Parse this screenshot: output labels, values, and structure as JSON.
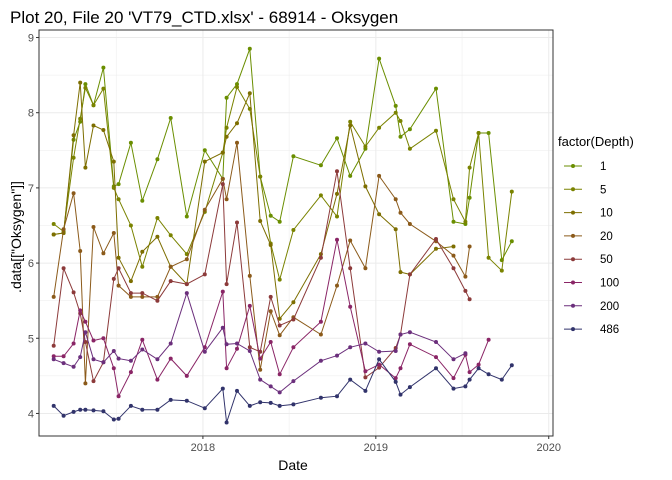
{
  "chart_data": {
    "type": "line",
    "title": "Plot 20, File 20 'VT79_CTD.xlsx' - 68914  -  Oksygen",
    "xlabel": "Date",
    "ylabel": ".data[[\"Oksygen\"]]",
    "xlim": [
      "2017-01-20",
      "2020-01-10"
    ],
    "ylim": [
      3.7,
      9.1
    ],
    "x_ticks": [
      {
        "value": "2018-01-01",
        "label": "2018"
      },
      {
        "value": "2019-01-01",
        "label": "2019"
      },
      {
        "value": "2020-01-01",
        "label": "2020"
      }
    ],
    "y_ticks": [
      4,
      5,
      6,
      7,
      8,
      9
    ],
    "grid": true,
    "legend": {
      "title": "factor(Depth)",
      "position": "right"
    },
    "x": [
      "2017-02-20",
      "2017-03-13",
      "2017-04-03",
      "2017-04-17",
      "2017-04-28",
      "2017-05-15",
      "2017-06-05",
      "2017-06-27",
      "2017-07-07",
      "2017-08-02",
      "2017-08-26",
      "2017-09-27",
      "2017-10-25",
      "2017-11-28",
      "2018-01-05",
      "2018-02-12",
      "2018-02-20",
      "2018-03-14",
      "2018-04-10",
      "2018-05-02",
      "2018-05-24",
      "2018-06-12",
      "2018-07-11",
      "2018-09-07",
      "2018-10-11",
      "2018-11-08",
      "2018-12-10",
      "2019-01-08",
      "2019-02-12",
      "2019-02-22",
      "2019-03-14",
      "2019-05-08",
      "2019-06-14",
      "2019-07-09",
      "2019-07-18",
      "2019-08-06",
      "2019-08-27",
      "2019-09-24",
      "2019-10-15",
      "2019-11-24"
    ],
    "series": [
      {
        "name": "1",
        "color": "#6a8e00",
        "values": [
          6.38,
          6.4,
          7.64,
          7.88,
          8.38,
          8.1,
          8.6,
          7.02,
          7.05,
          7.6,
          6.83,
          7.38,
          7.93,
          6.62,
          7.5,
          7.12,
          8.2,
          8.38,
          8.85,
          7.15,
          6.63,
          6.55,
          7.42,
          7.3,
          7.66,
          7.16,
          7.52,
          8.72,
          8.09,
          7.68,
          7.78,
          8.32,
          6.55,
          6.52,
          6.87,
          7.73,
          7.73,
          6.04,
          6.29,
          null
        ]
      },
      {
        "name": "5",
        "color": "#7a8300",
        "values": [
          6.52,
          6.42,
          7.4,
          7.92,
          8.33,
          8.1,
          8.32,
          7.0,
          6.85,
          6.5,
          5.95,
          6.6,
          6.37,
          6.12,
          6.68,
          7.47,
          7.8,
          8.34,
          8.05,
          7.15,
          6.26,
          5.78,
          6.44,
          6.9,
          6.62,
          7.88,
          7.55,
          7.8,
          8.0,
          7.89,
          7.52,
          7.76,
          6.85,
          6.55,
          7.27,
          7.73,
          6.07,
          5.9,
          6.95,
          null
        ]
      },
      {
        "name": "10",
        "color": "#7d6e00",
        "values": [
          6.38,
          6.4,
          7.7,
          8.4,
          7.27,
          7.83,
          7.77,
          7.35,
          6.07,
          5.76,
          6.15,
          6.35,
          5.95,
          5.72,
          7.35,
          7.47,
          7.68,
          7.86,
          8.26,
          6.56,
          6.24,
          5.26,
          5.48,
          6.12,
          6.92,
          7.83,
          7.02,
          6.65,
          6.45,
          5.88,
          5.85,
          6.19,
          6.22,
          null,
          null,
          null,
          null,
          null,
          null,
          null
        ]
      },
      {
        "name": "20",
        "color": "#8b5a1a",
        "values": [
          5.55,
          6.45,
          6.93,
          6.16,
          4.4,
          6.48,
          6.13,
          6.4,
          5.7,
          5.55,
          5.55,
          5.55,
          5.95,
          6.05,
          6.71,
          7.12,
          6.85,
          7.6,
          5.83,
          4.58,
          5.36,
          5.04,
          5.28,
          5.05,
          5.7,
          6.3,
          5.93,
          7.16,
          6.85,
          6.67,
          6.52,
          6.29,
          6.1,
          5.82,
          6.22,
          null,
          null,
          null,
          null,
          null
        ]
      },
      {
        "name": "50",
        "color": "#8c3a3a",
        "values": [
          4.9,
          5.93,
          5.61,
          5.33,
          4.95,
          4.43,
          4.68,
          5.79,
          5.93,
          5.6,
          5.6,
          5.5,
          5.76,
          5.72,
          5.85,
          7.05,
          5.72,
          6.54,
          4.88,
          4.82,
          5.55,
          5.17,
          5.25,
          6.07,
          7.22,
          5.93,
          4.48,
          4.61,
          4.87,
          5.05,
          5.85,
          6.32,
          5.93,
          5.63,
          5.52,
          null,
          null,
          null,
          null,
          null
        ]
      },
      {
        "name": "100",
        "color": "#8a2566",
        "values": [
          4.76,
          4.76,
          4.93,
          5.37,
          5.22,
          4.97,
          5.0,
          4.6,
          4.23,
          4.55,
          4.98,
          4.45,
          4.73,
          4.5,
          4.88,
          5.62,
          4.6,
          4.86,
          5.43,
          4.73,
          4.95,
          4.52,
          4.88,
          5.22,
          6.31,
          5.42,
          4.56,
          4.65,
          4.47,
          4.6,
          4.92,
          4.75,
          4.47,
          4.78,
          4.55,
          4.65,
          4.98,
          null,
          null,
          null
        ]
      },
      {
        "name": "200",
        "color": "#6b2f7c",
        "values": [
          4.72,
          4.67,
          4.62,
          4.75,
          5.08,
          4.72,
          4.68,
          4.83,
          4.73,
          4.7,
          4.85,
          4.72,
          4.93,
          5.6,
          4.82,
          5.14,
          4.92,
          4.93,
          4.83,
          4.45,
          4.36,
          4.28,
          4.43,
          4.7,
          4.77,
          4.88,
          4.93,
          4.82,
          4.83,
          5.05,
          5.08,
          4.95,
          4.72,
          4.8,
          null,
          null,
          null,
          null,
          null,
          null
        ]
      },
      {
        "name": "486",
        "color": "#31336b",
        "values": [
          4.1,
          3.97,
          4.02,
          4.05,
          4.05,
          4.04,
          4.03,
          3.92,
          3.93,
          4.1,
          4.05,
          4.05,
          4.18,
          4.17,
          4.07,
          4.33,
          3.88,
          4.3,
          4.1,
          4.15,
          4.14,
          4.1,
          4.12,
          4.21,
          4.23,
          4.45,
          4.3,
          4.72,
          4.42,
          4.25,
          4.35,
          4.6,
          4.33,
          4.36,
          4.45,
          4.6,
          4.52,
          4.45,
          4.64,
          null
        ]
      }
    ]
  }
}
